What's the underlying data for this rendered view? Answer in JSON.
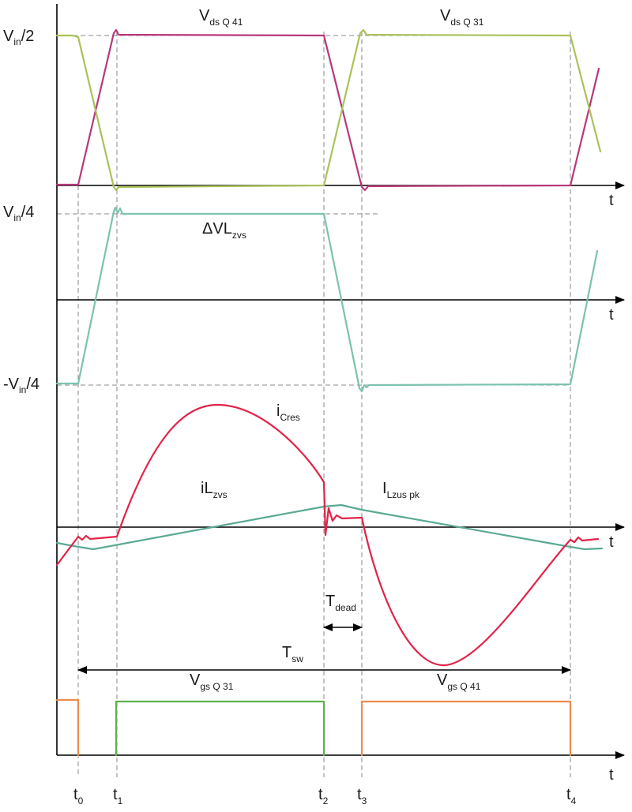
{
  "colors": {
    "magenta": "#b8387a",
    "yellow_green": "#a9c25a",
    "teal_light": "#7cc2b0",
    "red": "#e2234a",
    "teal": "#5aa994",
    "green": "#5fb04a",
    "orange": "#f08a4b",
    "guide": "#8a8a8a",
    "axis": "#000000"
  },
  "waveforms": [
    {
      "key": "vds_q41",
      "name_main": "V",
      "name_sub": "ds Q 41"
    },
    {
      "key": "vds_q31",
      "name_main": "V",
      "name_sub": "ds Q 31"
    },
    {
      "key": "dvl_zvs",
      "name_main": "ΔVL",
      "name_sub": "zvs"
    },
    {
      "key": "i_cres",
      "name_main": "i",
      "name_sub": "Cres"
    },
    {
      "key": "il_zvs",
      "name_main": "iL",
      "name_sub": "zvs"
    },
    {
      "key": "i_lzus_pk",
      "name_main": "I",
      "name_sub": "Lzus pk"
    },
    {
      "key": "vgs_q31",
      "name_main": "V",
      "name_sub": "gs Q 31"
    },
    {
      "key": "vgs_q41",
      "name_main": "V",
      "name_sub": "gs Q 41"
    }
  ],
  "levels": [
    {
      "key": "vin_half",
      "pre": "V",
      "sub": "in",
      "post": "/2"
    },
    {
      "key": "vin_quarter",
      "pre": "V",
      "sub": "in",
      "post": "/4"
    },
    {
      "key": "neg_vin_quarter",
      "pre": "-V",
      "sub": "in",
      "post": "/4"
    }
  ],
  "time_axis_label": "t",
  "time_markers": [
    {
      "key": "t0",
      "main": "t",
      "sub": "0"
    },
    {
      "key": "t1",
      "main": "t",
      "sub": "1"
    },
    {
      "key": "t2",
      "main": "t",
      "sub": "2"
    },
    {
      "key": "t3",
      "main": "t",
      "sub": "3"
    },
    {
      "key": "t4",
      "main": "t",
      "sub": "4"
    }
  ],
  "intervals": [
    {
      "key": "t_dead",
      "main": "T",
      "sub": "dead"
    },
    {
      "key": "t_sw",
      "main": "T",
      "sub": "sw"
    }
  ]
}
